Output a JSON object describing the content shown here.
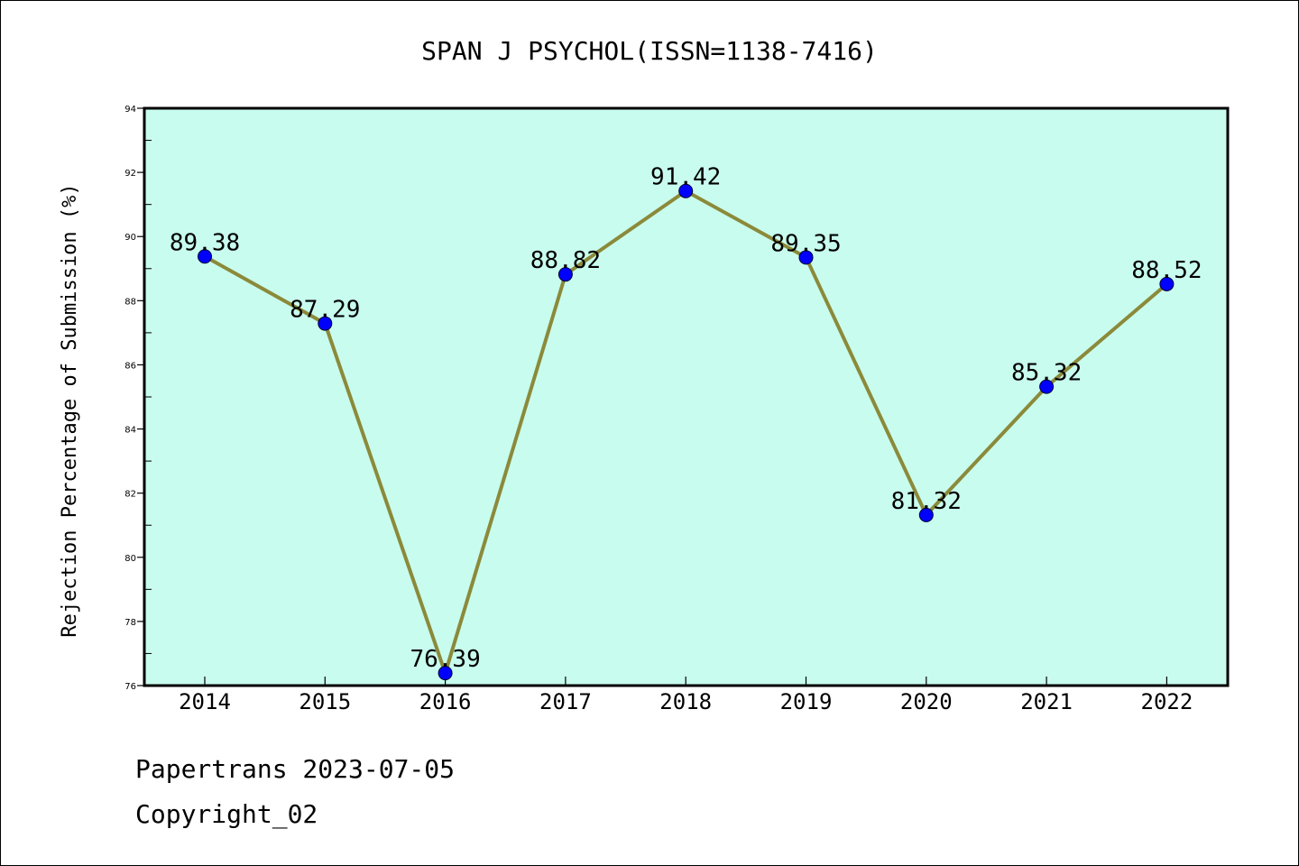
{
  "chart_data": {
    "type": "line",
    "title": "SPAN J PSYCHOL(ISSN=1138-7416)",
    "xlabel": "",
    "ylabel": "Rejection Percentage of Submission (%)",
    "categories": [
      "2014",
      "2015",
      "2016",
      "2017",
      "2018",
      "2019",
      "2020",
      "2021",
      "2022"
    ],
    "series": [
      {
        "values": [
          89.38,
          87.29,
          76.39,
          88.82,
          91.42,
          89.35,
          81.32,
          85.32,
          88.52
        ]
      }
    ],
    "data_labels": [
      "89.38",
      "87.29",
      "76.39",
      "88.82",
      "91.42",
      "89.35",
      "81.32",
      "85.32",
      "88.52"
    ],
    "ylim": [
      76,
      94
    ],
    "yticks": [
      76,
      78,
      80,
      82,
      84,
      86,
      88,
      90,
      92,
      94
    ],
    "grid": false,
    "legend": "none",
    "colors": {
      "plot_background": "#c8fcee",
      "line": "#8b8a3a",
      "marker": "#0000ff"
    }
  },
  "footer": {
    "line1": "Papertrans 2023-07-05",
    "line2": "Copyright_02"
  }
}
